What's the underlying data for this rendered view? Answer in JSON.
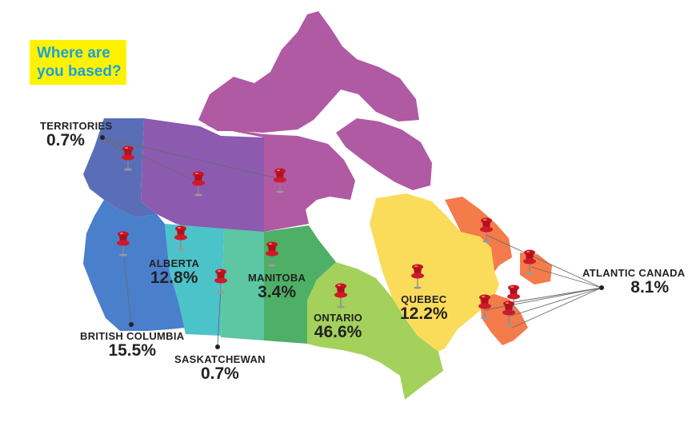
{
  "title": {
    "line1": "Where are",
    "line2": "you based?"
  },
  "regions": [
    {
      "id": "territories",
      "name": "TERRITORIES",
      "value": "0.7%"
    },
    {
      "id": "british-columbia",
      "name": "BRITISH COLUMBIA",
      "value": "15.5%"
    },
    {
      "id": "alberta",
      "name": "ALBERTA",
      "value": "12.8%"
    },
    {
      "id": "saskatchewan",
      "name": "SASKATCHEWAN",
      "value": "0.7%"
    },
    {
      "id": "manitoba",
      "name": "MANITOBA",
      "value": "3.4%"
    },
    {
      "id": "ontario",
      "name": "ONTARIO",
      "value": "46.6%"
    },
    {
      "id": "quebec",
      "name": "QUEBEC",
      "value": "12.2%"
    },
    {
      "id": "atlantic-canada",
      "name": "ATLANTIC CANADA",
      "value": "8.1%"
    }
  ],
  "colors": {
    "title_bg": "#fff200",
    "title_text": "#1aa3d9",
    "yukon": "#5a6eb8",
    "nwt": "#8c5aaf",
    "nunavut": "#b05aa4",
    "british_columbia": "#4a7fcc",
    "alberta": "#4cc3c9",
    "saskatchewan": "#5cc7a2",
    "manitoba": "#4db066",
    "ontario": "#a3d15c",
    "quebec": "#fbdc5a",
    "atlantic": "#f47b4a",
    "pin": "#d0192b"
  }
}
